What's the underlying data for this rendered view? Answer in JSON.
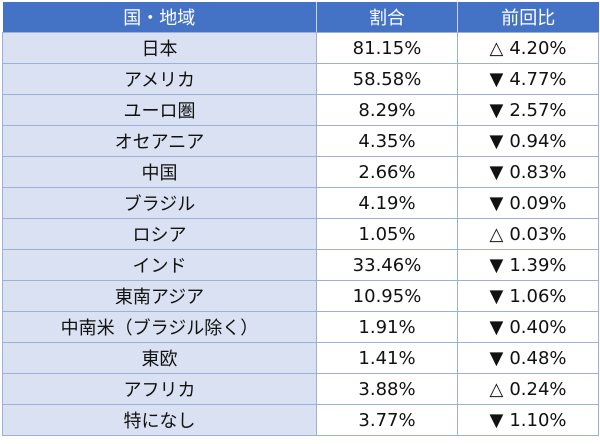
{
  "table": {
    "headers": [
      "国・地域",
      "割合",
      "前回比"
    ],
    "rows": [
      {
        "country": "日本",
        "share": "81.15%",
        "change_mark": "△",
        "change": "4.20%"
      },
      {
        "country": "アメリカ",
        "share": "58.58%",
        "change_mark": "▼",
        "change": "4.77%"
      },
      {
        "country": "ユーロ圏",
        "share": "8.29%",
        "change_mark": "▼",
        "change": "2.57%"
      },
      {
        "country": "オセアニア",
        "share": "4.35%",
        "change_mark": "▼",
        "change": "0.94%"
      },
      {
        "country": "中国",
        "share": "2.66%",
        "change_mark": "▼",
        "change": "0.83%"
      },
      {
        "country": "ブラジル",
        "share": "4.19%",
        "change_mark": "▼",
        "change": "0.09%"
      },
      {
        "country": "ロシア",
        "share": "1.05%",
        "change_mark": "△",
        "change": "0.03%"
      },
      {
        "country": "インド",
        "share": "33.46%",
        "change_mark": "▼",
        "change": "1.39%"
      },
      {
        "country": "東南アジア",
        "share": "10.95%",
        "change_mark": "▼",
        "change": "1.06%"
      },
      {
        "country": "中南米（ブラジル除く）",
        "share": "1.91%",
        "change_mark": "▼",
        "change": "0.40%"
      },
      {
        "country": "東欧",
        "share": "1.41%",
        "change_mark": "▼",
        "change": "0.48%"
      },
      {
        "country": "アフリカ",
        "share": "3.88%",
        "change_mark": "△",
        "change": "0.24%"
      },
      {
        "country": "特になし",
        "share": "3.77%",
        "change_mark": "▼",
        "change": "1.10%"
      }
    ]
  },
  "colors": {
    "header_bg": "#4472c4",
    "header_text": "#ffffff",
    "country_bg": "#d9e1f2",
    "border": "#9cb0d8"
  }
}
